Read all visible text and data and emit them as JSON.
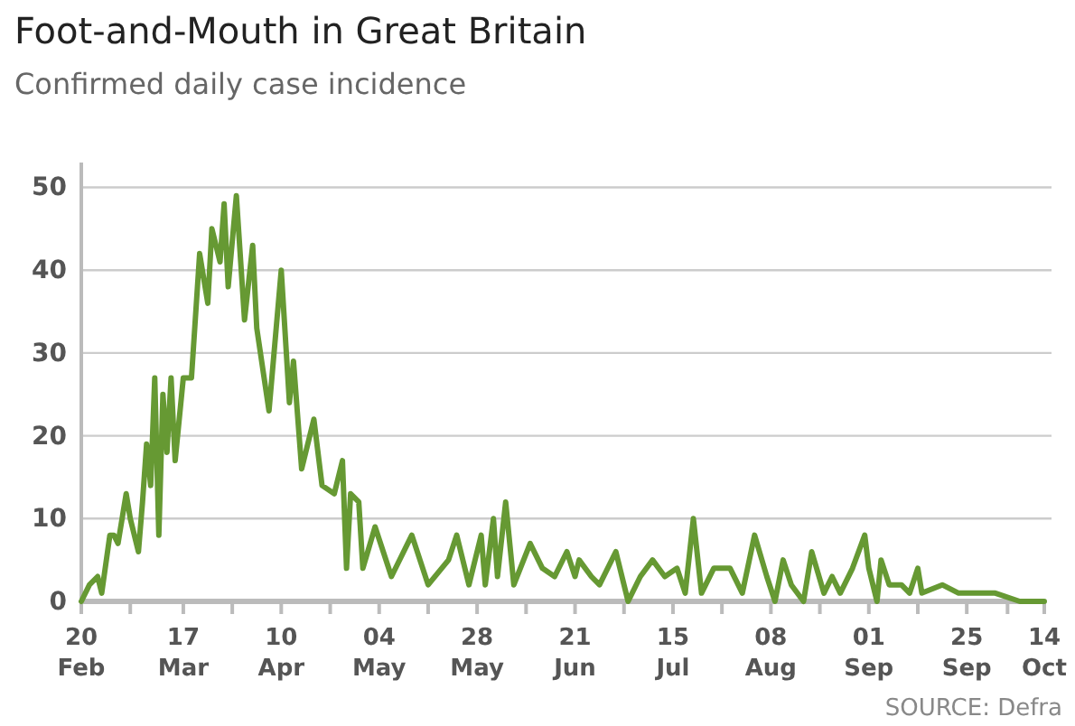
{
  "chart_data": {
    "type": "line",
    "title": "Foot-and-Mouth in Great Britain",
    "subtitle": "Confirmed daily case incidence",
    "annotations": [
      "SOURCE: Defra"
    ],
    "x": [
      "--02-20",
      "--02-22",
      "--02-24",
      "--02-25",
      "--02-27",
      "--02-28",
      "--03-01",
      "--03-03",
      "--03-04",
      "--03-06",
      "--03-07",
      "--03-08",
      "--03-09",
      "--03-10",
      "--03-11",
      "--03-12",
      "--03-13",
      "--03-14",
      "--03-15",
      "--03-17",
      "--03-19",
      "--03-21",
      "--03-23",
      "--03-24",
      "--03-26",
      "--03-27",
      "--03-28",
      "--03-30",
      "--04-01",
      "--04-03",
      "--04-04",
      "--04-07",
      "--04-10",
      "--04-12",
      "--04-13",
      "--04-15",
      "--04-18",
      "--04-20",
      "--04-23",
      "--04-25",
      "--04-26",
      "--04-27",
      "--04-29",
      "--04-30",
      "--05-03",
      "--05-07",
      "--05-12",
      "--05-16",
      "--05-21",
      "--05-23",
      "--05-26",
      "--05-29",
      "--05-30",
      "--06-01",
      "--06-02",
      "--06-04",
      "--06-06",
      "--06-10",
      "--06-13",
      "--06-16",
      "--06-19",
      "--06-21",
      "--06-22",
      "--06-25",
      "--06-27",
      "--07-01",
      "--07-04",
      "--07-07",
      "--07-10",
      "--07-13",
      "--07-16",
      "--07-18",
      "--07-20",
      "--07-22",
      "--07-25",
      "--07-27",
      "--07-29",
      "--08-01",
      "--08-04",
      "--08-07",
      "--08-09",
      "--08-11",
      "--08-13",
      "--08-16",
      "--08-18",
      "--08-21",
      "--08-23",
      "--08-25",
      "--08-28",
      "--08-31",
      "--09-01",
      "--09-03",
      "--09-04",
      "--09-06",
      "--09-09",
      "--09-11",
      "--09-13",
      "--09-14",
      "--09-19",
      "--09-23",
      "--09-26",
      "--10-02",
      "--10-08",
      "--10-14"
    ],
    "series": [
      {
        "color": "#669933",
        "values": [
          0,
          2,
          3,
          1,
          8,
          8,
          7,
          13,
          10,
          6,
          12,
          19,
          14,
          27,
          8,
          25,
          18,
          27,
          17,
          27,
          27,
          42,
          36,
          45,
          41,
          48,
          38,
          49,
          34,
          43,
          33,
          23,
          40,
          24,
          29,
          16,
          22,
          14,
          13,
          17,
          4,
          13,
          12,
          4,
          9,
          3,
          8,
          2,
          5,
          8,
          2,
          8,
          2,
          10,
          3,
          12,
          2,
          7,
          4,
          3,
          6,
          3,
          5,
          3,
          2,
          6,
          0,
          3,
          5,
          3,
          4,
          1,
          10,
          1,
          4,
          4,
          4,
          1,
          8,
          3,
          0,
          5,
          2,
          0,
          6,
          1,
          3,
          1,
          4,
          8,
          4,
          0,
          5,
          2,
          2,
          1,
          4,
          1,
          2,
          1,
          1,
          1,
          0,
          0
        ]
      }
    ],
    "ylim": [
      0,
      53
    ],
    "yticks": [
      0,
      10,
      20,
      30,
      40,
      50
    ],
    "xlim": [
      "--02-20",
      "--10-14"
    ],
    "xticks": [
      {
        "value": "--02-20",
        "label": "20\nFeb"
      },
      {
        "value": "--03-04",
        "label": null
      },
      {
        "value": "--03-17",
        "label": "17\nMar"
      },
      {
        "value": "--03-29",
        "label": null
      },
      {
        "value": "--04-10",
        "label": "10\nApr"
      },
      {
        "value": "--04-22",
        "label": null
      },
      {
        "value": "--05-04",
        "label": "04\nMay"
      },
      {
        "value": "--05-16",
        "label": null
      },
      {
        "value": "--05-28",
        "label": "28\nMay"
      },
      {
        "value": "--06-09",
        "label": null
      },
      {
        "value": "--06-21",
        "label": "21\nJun"
      },
      {
        "value": "--07-03",
        "label": null
      },
      {
        "value": "--07-15",
        "label": "15\nJul"
      },
      {
        "value": "--07-27",
        "label": null
      },
      {
        "value": "--08-08",
        "label": "08\nAug"
      },
      {
        "value": "--08-20",
        "label": null
      },
      {
        "value": "--09-01",
        "label": "01\nSep"
      },
      {
        "value": "--09-13",
        "label": null
      },
      {
        "value": "--09-25",
        "label": "25\nSep"
      },
      {
        "value": "--10-05",
        "label": null
      },
      {
        "value": "--10-14",
        "label": "14\nOct"
      }
    ],
    "grid": "y",
    "marker": "none",
    "line_style": "solid"
  }
}
